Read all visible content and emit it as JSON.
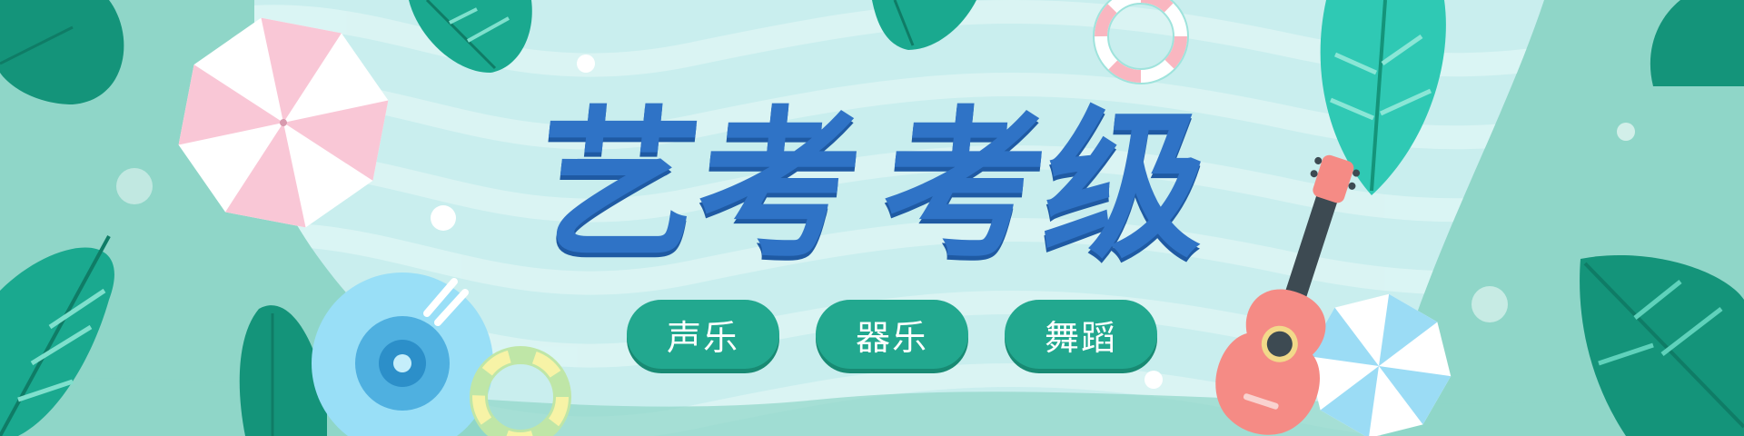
{
  "banner": {
    "title_chars": [
      "艺考",
      "考级"
    ],
    "categories": [
      {
        "label": "声乐"
      },
      {
        "label": "器乐"
      },
      {
        "label": "舞蹈"
      }
    ]
  },
  "colors": {
    "background": "#8fd6c8",
    "pool_water": "#c9eeee",
    "title_text": "#2f73c6",
    "pill_background": "#22a88f",
    "pill_text": "#ffffff",
    "leaf_dark": "#14947a",
    "leaf_light": "#2fc9b4",
    "umbrella_pink": "#f9c7d6",
    "umbrella_blue": "#9bdcf5",
    "guitar_body": "#f58b85"
  },
  "icons": [
    "leaf-icon",
    "beach-umbrella-icon",
    "swim-ring-icon",
    "vinyl-record-icon",
    "guitar-icon",
    "bubble-icon"
  ]
}
